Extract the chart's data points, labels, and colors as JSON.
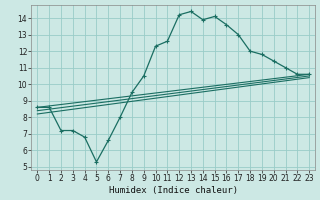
{
  "xlabel": "Humidex (Indice chaleur)",
  "background_color": "#cce8e4",
  "grid_color": "#99ccc8",
  "line_color": "#1a6e62",
  "xlim": [
    -0.5,
    23.5
  ],
  "ylim": [
    4.8,
    14.8
  ],
  "xticks": [
    0,
    1,
    2,
    3,
    4,
    5,
    6,
    7,
    8,
    9,
    10,
    11,
    12,
    13,
    14,
    15,
    16,
    17,
    18,
    19,
    20,
    21,
    22,
    23
  ],
  "yticks": [
    5,
    6,
    7,
    8,
    9,
    10,
    11,
    12,
    13,
    14
  ],
  "main_x": [
    0,
    1,
    2,
    3,
    4,
    5,
    6,
    7,
    8,
    9,
    10,
    11,
    12,
    13,
    14,
    15,
    16,
    17,
    18,
    19,
    20,
    21,
    22,
    23
  ],
  "main_y": [
    8.6,
    8.6,
    7.2,
    7.2,
    6.8,
    5.3,
    6.6,
    8.0,
    9.5,
    10.5,
    12.3,
    12.6,
    14.2,
    14.4,
    13.9,
    14.1,
    13.6,
    13.0,
    12.0,
    11.8,
    11.4,
    11.0,
    10.6,
    10.6
  ],
  "line1_x": [
    0,
    23
  ],
  "line1_y": [
    8.6,
    10.6
  ],
  "line2_x": [
    0,
    23
  ],
  "line2_y": [
    8.4,
    10.5
  ],
  "line3_x": [
    0,
    23
  ],
  "line3_y": [
    8.2,
    10.4
  ],
  "tick_fontsize": 5.5,
  "xlabel_fontsize": 6.5
}
